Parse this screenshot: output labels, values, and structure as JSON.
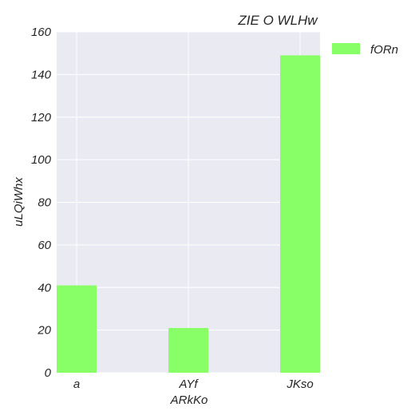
{
  "chart_data": {
    "type": "bar",
    "title": "ZIE O WLHw",
    "xlabel": "ARkKo",
    "ylabel": "uLQiWhx",
    "categories": [
      "a",
      "AYf",
      "JKso"
    ],
    "series": [
      {
        "name": "fORn",
        "values": [
          41,
          21,
          149
        ],
        "color": "#88ff66"
      }
    ],
    "ylim": [
      0,
      160
    ],
    "yticks": [
      0,
      20,
      40,
      60,
      80,
      100,
      120,
      140,
      160
    ],
    "grid": true,
    "legend_position": "outside-top-right",
    "background_color": "#eaeaf2",
    "grid_color": "#ffffff"
  }
}
